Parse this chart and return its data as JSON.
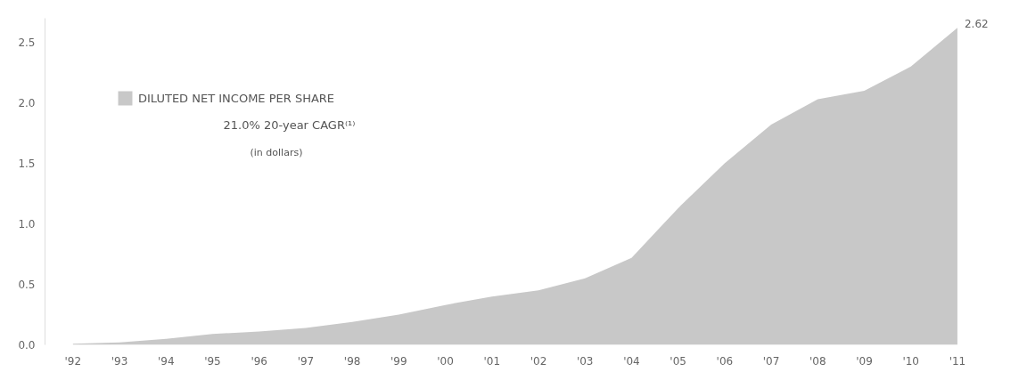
{
  "chart_data": {
    "type": "area",
    "categories": [
      "'92",
      "'93",
      "'94",
      "'95",
      "'96",
      "'97",
      "'98",
      "'99",
      "'00",
      "'01",
      "'02",
      "'03",
      "'04",
      "'05",
      "'06",
      "'07",
      "'08",
      "'09",
      "'10",
      "'11"
    ],
    "series": [
      {
        "name": "DILUTED NET INCOME PER SHARE",
        "color": "#c8c8c8",
        "values": [
          0.01,
          0.02,
          0.05,
          0.09,
          0.11,
          0.14,
          0.19,
          0.25,
          0.33,
          0.4,
          0.45,
          0.55,
          0.72,
          1.13,
          1.5,
          1.82,
          2.03,
          2.1,
          2.3,
          2.62
        ],
        "value_labels": [
          null,
          null,
          null,
          null,
          null,
          null,
          null,
          null,
          null,
          null,
          null,
          null,
          null,
          null,
          null,
          null,
          null,
          null,
          null,
          "2.62"
        ]
      }
    ],
    "annotations": [
      "21.0% 20-year CAGR⁽¹⁾",
      "(in dollars)"
    ],
    "ylim": [
      0,
      2.7
    ],
    "yticks": [
      {
        "value": 0,
        "label": "0.0"
      },
      {
        "value": 0.5,
        "label": "0.5"
      },
      {
        "value": 1,
        "label": "1.0"
      },
      {
        "value": 1.5,
        "label": "1.5"
      },
      {
        "value": 2,
        "label": "2.0"
      },
      {
        "value": 2.5,
        "label": "2.5"
      }
    ],
    "grid": false,
    "legend": "top left"
  }
}
